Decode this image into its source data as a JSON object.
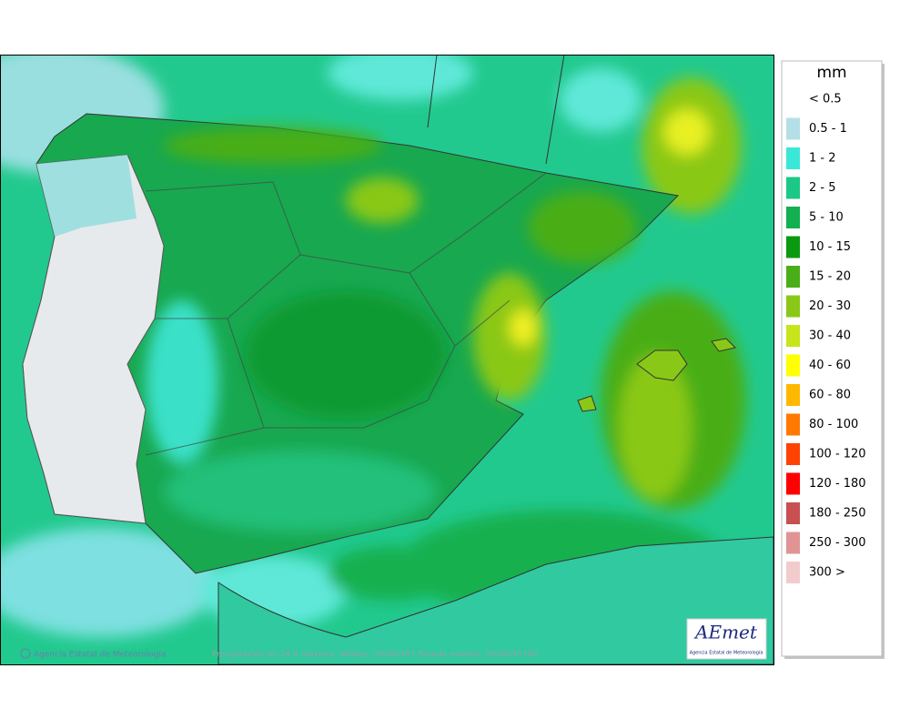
{
  "map": {
    "footer": {
      "credit": "Agencia Estatal de Meteorología",
      "caption": "Precipitación en 24 h máxima. Validez: 20260307 Pasada modelo: 2026030700"
    },
    "logo": {
      "name": "AEmet",
      "subtitle": "Agencia Estatal de Meteorología"
    }
  },
  "legend": {
    "title": "mm",
    "items": [
      {
        "label": "< 0.5",
        "color": "#ffffff"
      },
      {
        "label": "0.5 - 1",
        "color": "#b4dfe6"
      },
      {
        "label": "1 - 2",
        "color": "#3ae8d8"
      },
      {
        "label": "2 - 5",
        "color": "#1cc886"
      },
      {
        "label": "5 - 10",
        "color": "#12b050"
      },
      {
        "label": "10 - 15",
        "color": "#0a9a12"
      },
      {
        "label": "15 - 20",
        "color": "#4aae18"
      },
      {
        "label": "20 - 30",
        "color": "#8ac818"
      },
      {
        "label": "30 - 40",
        "color": "#c8e41a"
      },
      {
        "label": "40 - 60",
        "color": "#ffff00"
      },
      {
        "label": "60 - 80",
        "color": "#ffb800"
      },
      {
        "label": "80 - 100",
        "color": "#ff7a00"
      },
      {
        "label": "100 - 120",
        "color": "#ff4200"
      },
      {
        "label": "120 - 180",
        "color": "#ff0000"
      },
      {
        "label": "180 - 250",
        "color": "#c85050"
      },
      {
        "label": "250 - 300",
        "color": "#e09494"
      },
      {
        "label": "300 >",
        "color": "#f2cccc"
      }
    ]
  }
}
